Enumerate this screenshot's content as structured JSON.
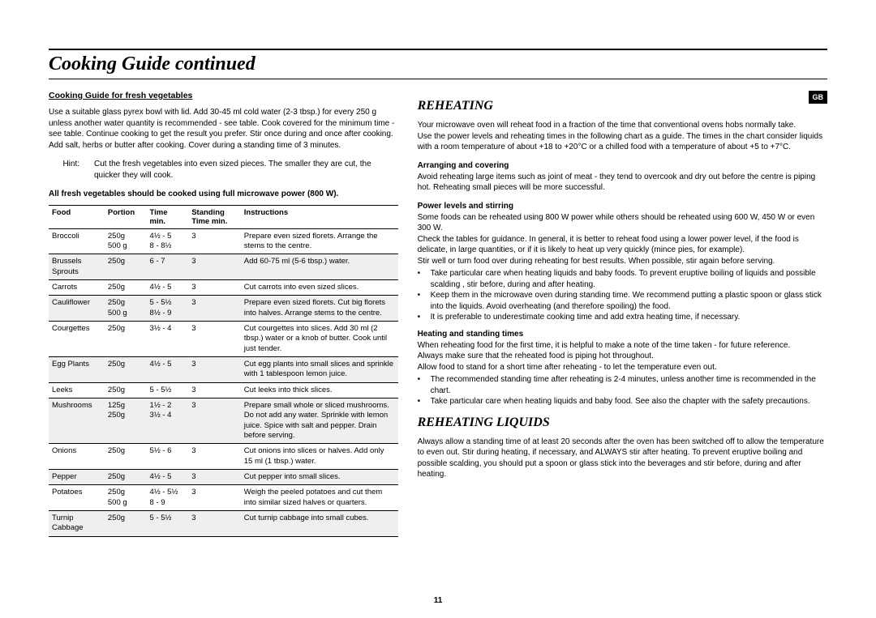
{
  "page": {
    "title": "Cooking Guide continued",
    "page_number": "11",
    "gb_badge": "GB"
  },
  "left": {
    "subhead": "Cooking Guide for fresh vegetables",
    "intro": "Use a suitable glass pyrex bowl with lid. Add 30-45 ml cold water (2-3 tbsp.) for every 250 g unless another water quantity is recommended - see table. Cook covered for the minimum time - see table. Continue cooking to get the result you prefer. Stir once during and once after cooking. Add salt, herbs or butter after cooking. Cover during a standing time of 3 minutes.",
    "hint_label": "Hint:",
    "hint_text": "Cut the fresh vegetables into even sized pieces. The smaller they are cut, the quicker they will cook.",
    "table_note": "All fresh vegetables should be cooked using full microwave power (800 W).",
    "table": {
      "headers": {
        "food": "Food",
        "portion": "Portion",
        "time": "Time min.",
        "standing": "Standing Time min.",
        "instructions": "Instructions"
      },
      "rows": [
        {
          "shaded": false,
          "food": "Broccoli",
          "portion": "250g\n500 g",
          "time": "4½ - 5\n8 - 8½",
          "standing": "3",
          "instructions": "Prepare even sized florets. Arrange the stems to the centre."
        },
        {
          "shaded": true,
          "food": "Brussels Sprouts",
          "portion": "250g",
          "time": "6 - 7",
          "standing": "3",
          "instructions": "Add 60-75 ml (5-6 tbsp.) water."
        },
        {
          "shaded": false,
          "food": "Carrots",
          "portion": "250g",
          "time": "4½ - 5",
          "standing": "3",
          "instructions": "Cut carrots into even sized slices."
        },
        {
          "shaded": true,
          "food": "Cauliflower",
          "portion": "250g\n500 g",
          "time": "5 - 5½\n8½ - 9",
          "standing": "3",
          "instructions": "Prepare even sized florets. Cut big florets into halves. Arrange stems to the centre."
        },
        {
          "shaded": false,
          "food": "Courgettes",
          "portion": "250g",
          "time": "3½ - 4",
          "standing": "3",
          "instructions": "Cut courgettes into slices. Add 30 ml (2 tbsp.) water or a knob of butter. Cook until just tender."
        },
        {
          "shaded": true,
          "food": "Egg Plants",
          "portion": "250g",
          "time": "4½ - 5",
          "standing": "3",
          "instructions": "Cut egg plants into small slices and sprinkle with 1 tablespoon lemon juice."
        },
        {
          "shaded": false,
          "food": "Leeks",
          "portion": "250g",
          "time": "5 - 5½",
          "standing": "3",
          "instructions": "Cut leeks into thick slices."
        },
        {
          "shaded": true,
          "food": "Mushrooms",
          "portion": "125g\n250g",
          "time": "1½ - 2\n3½ - 4",
          "standing": "3",
          "instructions": "Prepare small whole or sliced mushrooms. Do not add any water. Sprinkle with lemon juice. Spice with salt and pepper. Drain before serving."
        },
        {
          "shaded": false,
          "food": "Onions",
          "portion": "250g",
          "time": "5½ - 6",
          "standing": "3",
          "instructions": "Cut onions into slices or halves. Add only 15 ml (1 tbsp.) water."
        },
        {
          "shaded": true,
          "food": "Pepper",
          "portion": "250g",
          "time": "4½ - 5",
          "standing": "3",
          "instructions": "Cut pepper into small slices."
        },
        {
          "shaded": false,
          "food": "Potatoes",
          "portion": "250g\n500 g",
          "time": "4½ - 5½\n8 - 9",
          "standing": "3",
          "instructions": "Weigh the peeled potatoes and cut them into similar sized halves or quarters."
        },
        {
          "shaded": true,
          "food": "Turnip Cabbage",
          "portion": "250g",
          "time": "5 - 5½",
          "standing": "3",
          "instructions": "Cut turnip cabbage into small cubes."
        }
      ]
    }
  },
  "right": {
    "reheating_title": "REHEATING",
    "reheating_intro": "Your microwave oven will reheat food in a fraction of the time that conventional ovens hobs normally take.\nUse the power levels and reheating times in the following chart as a guide. The times in the chart consider liquids with a room temperature of about +18 to +20°C or a chilled food with a temperature of about +5 to +7°C.",
    "arranging_head": "Arranging and covering",
    "arranging_text": "Avoid reheating large items such as joint of meat - they tend to overcook and dry out before the centre is piping hot. Reheating small pieces will be more successful.",
    "power_head": "Power levels and stirring",
    "power_intro": "Some foods can be reheated using 800 W power while others should be reheated using 600 W, 450 W or even 300 W.\nCheck the tables for guidance. In general, it is better to reheat food using a lower power level, if the food is delicate, in large quantities, or if it is likely to heat up very quickly (mince pies, for example).\nStir well or turn food over during reheating for best results. When possible, stir again before serving.",
    "power_bullets": [
      "Take particular care when heating liquids and baby foods. To prevent eruptive boiling of liquids and possible scalding , stir before, during and after heating.",
      "Keep them in the microwave oven during standing time. We recommend putting a plastic spoon or glass stick into the liquids. Avoid overheating (and therefore spoiling) the food.",
      "It is preferable to underestimate cooking time and add extra heating time, if necessary."
    ],
    "heating_head": "Heating and standing times",
    "heating_intro": "When reheating food for the first time, it is helpful to make a note of the time taken - for future reference.\nAlways make sure that the reheated food is piping hot throughout.\nAllow food to stand for a short time after reheating - to let the temperature even out.",
    "heating_bullets": [
      "The recommended standing time after reheating is 2-4 minutes, unless another time is recommended in the chart.",
      "Take particular care when heating liquids and baby food. See also the chapter with the safety precautions."
    ],
    "liquids_title": "REHEATING LIQUIDS",
    "liquids_text": "Always allow a standing time of at least 20 seconds after the oven has been switched off to allow the temperature to even out. Stir during heating, if necessary, and ALWAYS stir after heating. To prevent eruptive boiling and possible scalding, you should put a spoon or glass stick into the beverages and stir before, during and after heating."
  },
  "style": {
    "background": "#ffffff",
    "text_color": "#000000",
    "shade_color": "#efefef",
    "title_fontsize": 24,
    "section_fontsize": 16,
    "body_fontsize": 10
  }
}
